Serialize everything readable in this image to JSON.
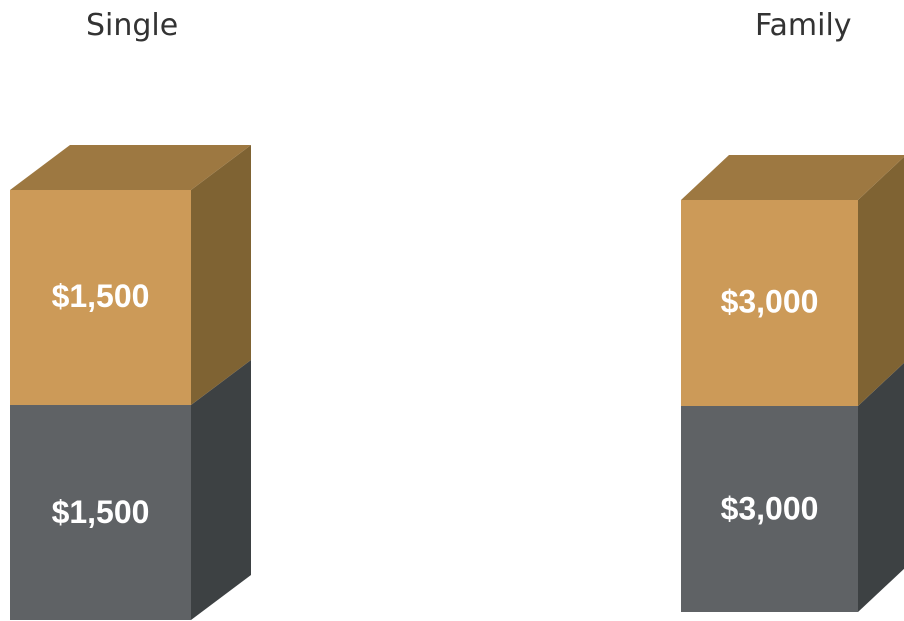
{
  "chart_data": {
    "type": "bar",
    "categories": [
      "Single",
      "Family"
    ],
    "series": [
      {
        "values": [
          1500,
          3000
        ],
        "labels": [
          "$1,500",
          "$3,000"
        ]
      },
      {
        "values": [
          1500,
          3000
        ],
        "labels": [
          "$1,500",
          "$3,000"
        ]
      }
    ],
    "colors": {
      "bottom_front": "#5f6265",
      "bottom_side": "#3d4143",
      "top_front": "#cc9a58",
      "top_side": "#7f6333",
      "top_cap": "#9d7841"
    }
  }
}
